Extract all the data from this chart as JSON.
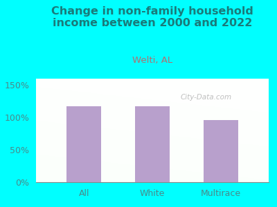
{
  "title": "Change in non-family household\nincome between 2000 and 2022",
  "subtitle": "Welti, AL",
  "categories": [
    "All",
    "White",
    "Multirace"
  ],
  "values": [
    117,
    117,
    96
  ],
  "bar_color": "#b8a0cc",
  "title_color": "#1a7a7a",
  "subtitle_color": "#b07070",
  "tick_color": "#4a8a8a",
  "bg_outer": "#00ffff",
  "ylim": [
    0,
    160
  ],
  "yticks": [
    0,
    50,
    100,
    150
  ],
  "ytick_labels": [
    "0%",
    "50%",
    "100%",
    "150%"
  ],
  "watermark": "City-Data.com",
  "title_fontsize": 11.5,
  "subtitle_fontsize": 9.5,
  "tick_fontsize": 9
}
